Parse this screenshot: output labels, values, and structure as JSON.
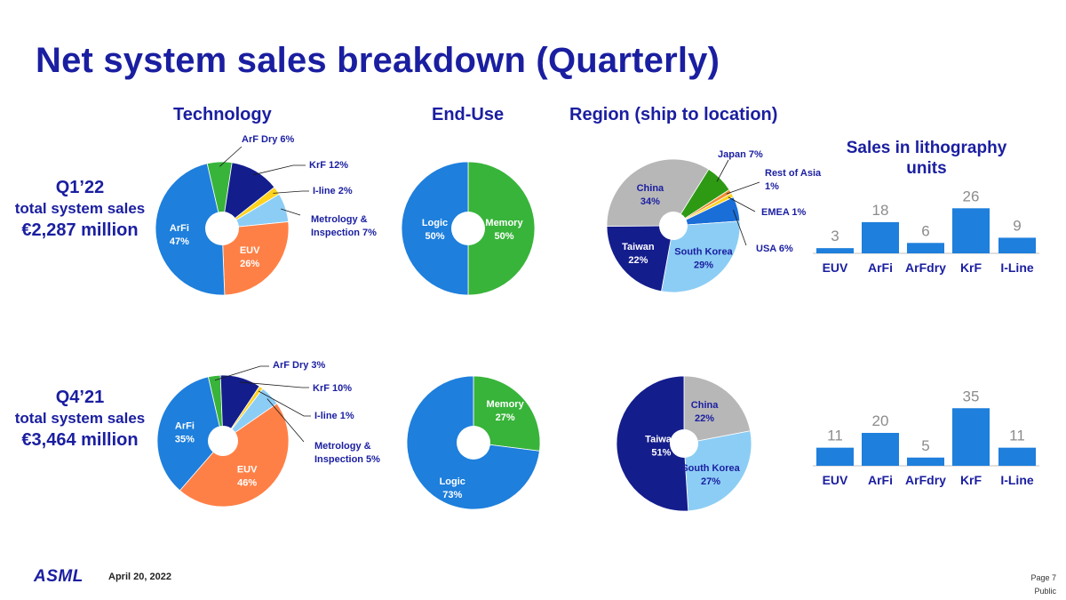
{
  "title": "Net system sales breakdown (Quarterly)",
  "column_headers": {
    "technology": "Technology",
    "end_use": "End-Use",
    "region": "Region (ship to location)",
    "litho": "Sales in lithography units"
  },
  "quarters": [
    {
      "label": "Q1’22",
      "total_label": "total system sales",
      "total_value": "€2,287 million"
    },
    {
      "label": "Q4’21",
      "total_label": "total system sales",
      "total_value": "€3,464 million"
    }
  ],
  "colors": {
    "title": "#1a1ea0",
    "arfi": "#1e7fdc",
    "euv": "#ff8046",
    "arf_dry": "#38b43a",
    "krf": "#141d8c",
    "iline": "#ffd21e",
    "metrology": "#8ccdf5",
    "logic": "#1e7fdc",
    "memory": "#38b43a",
    "china": "#b7b7b7",
    "japan": "#2e9a14",
    "rest_of_asia": "#f08c30",
    "emea": "#ffd21e",
    "usa": "#1a6ed8",
    "south_korea": "#8ccdf5",
    "taiwan": "#141d8c",
    "bar": "#1e7fdc"
  },
  "chart_data": [
    {
      "type": "pie",
      "name": "Technology Q1’22",
      "labels": [
        "ArF Dry 6%",
        "KrF 12%",
        "I-line 2%",
        "Metrology & Inspection 7%",
        "EUV 26%",
        "ArFi 47%"
      ],
      "values": [
        6,
        12,
        2,
        7,
        26,
        47
      ]
    },
    {
      "type": "pie",
      "name": "End-Use Q1’22",
      "labels": [
        "Memory 50%",
        "Logic 50%"
      ],
      "values": [
        50,
        50
      ]
    },
    {
      "type": "pie",
      "name": "Region Q1’22",
      "labels": [
        "Japan 7%",
        "Rest of Asia 1%",
        "EMEA 1%",
        "USA 6%",
        "South Korea 29%",
        "Taiwan 22%",
        "China 34%"
      ],
      "values": [
        7,
        1,
        1,
        6,
        29,
        22,
        34
      ]
    },
    {
      "type": "bar",
      "name": "Sales in lithography units Q1’22",
      "categories": [
        "EUV",
        "ArFi",
        "ArFdry",
        "KrF",
        "I-Line"
      ],
      "values": [
        3,
        18,
        6,
        26,
        9
      ]
    },
    {
      "type": "pie",
      "name": "Technology Q4’21",
      "labels": [
        "ArF Dry 3%",
        "KrF 10%",
        "I-line 1%",
        "Metrology & Inspection 5%",
        "EUV 46%",
        "ArFi 35%"
      ],
      "values": [
        3,
        10,
        1,
        5,
        46,
        35
      ]
    },
    {
      "type": "pie",
      "name": "End-Use Q4’21",
      "labels": [
        "Memory 27%",
        "Logic 73%"
      ],
      "values": [
        27,
        73
      ]
    },
    {
      "type": "pie",
      "name": "Region Q4’21",
      "labels": [
        "China 22%",
        "South Korea 27%",
        "Taiwan 51%"
      ],
      "values": [
        22,
        27,
        51
      ]
    },
    {
      "type": "bar",
      "name": "Sales in lithography units Q4’21",
      "categories": [
        "EUV",
        "ArFi",
        "ArFdry",
        "KrF",
        "I-Line"
      ],
      "values": [
        11,
        20,
        5,
        35,
        11
      ]
    }
  ],
  "footer": {
    "logo": "ASML",
    "date": "April 20, 2022",
    "page": "Page 7",
    "classification": "Public"
  }
}
